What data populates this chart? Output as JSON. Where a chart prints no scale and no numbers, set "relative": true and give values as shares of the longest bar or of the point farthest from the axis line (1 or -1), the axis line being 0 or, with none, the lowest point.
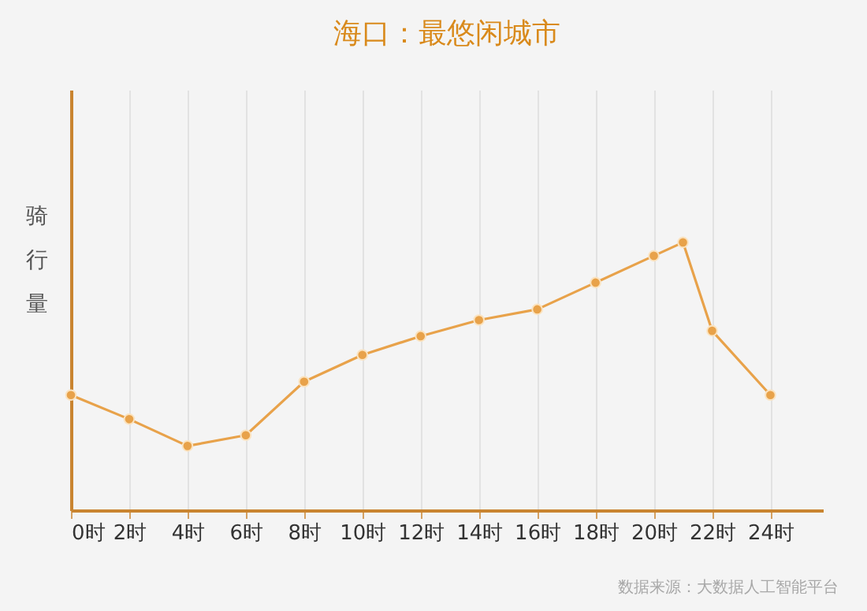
{
  "chart_data": {
    "type": "line",
    "title": "海口：最悠闲城市",
    "ylabel": "骑行量",
    "x": [
      0,
      2,
      4,
      6,
      8,
      10,
      12,
      14,
      16,
      18,
      20,
      21,
      22,
      24
    ],
    "series": [
      {
        "color": "#e8a24a",
        "values": [
          0.43,
          0.34,
          0.24,
          0.28,
          0.48,
          0.58,
          0.65,
          0.71,
          0.75,
          0.85,
          0.95,
          1,
          0.67,
          0.43
        ]
      }
    ],
    "relative": true,
    "xlim": [
      0,
      25.8
    ],
    "xticks": [
      {
        "value": 0,
        "label": "0时"
      },
      {
        "value": 2,
        "label": "2时"
      },
      {
        "value": 4,
        "label": "4时"
      },
      {
        "value": 6,
        "label": "6时"
      },
      {
        "value": 8,
        "label": "8时"
      },
      {
        "value": 10,
        "label": "10时"
      },
      {
        "value": 12,
        "label": "12时"
      },
      {
        "value": 14,
        "label": "14时"
      },
      {
        "value": 16,
        "label": "16时"
      },
      {
        "value": 18,
        "label": "18时"
      },
      {
        "value": 20,
        "label": "20时"
      },
      {
        "value": 22,
        "label": "22时"
      },
      {
        "value": 24,
        "label": "24时"
      }
    ],
    "grid": "x",
    "marker": "circle",
    "line_style": "solid",
    "annotations": [
      "数据来源：大数据人工智能平台"
    ]
  }
}
